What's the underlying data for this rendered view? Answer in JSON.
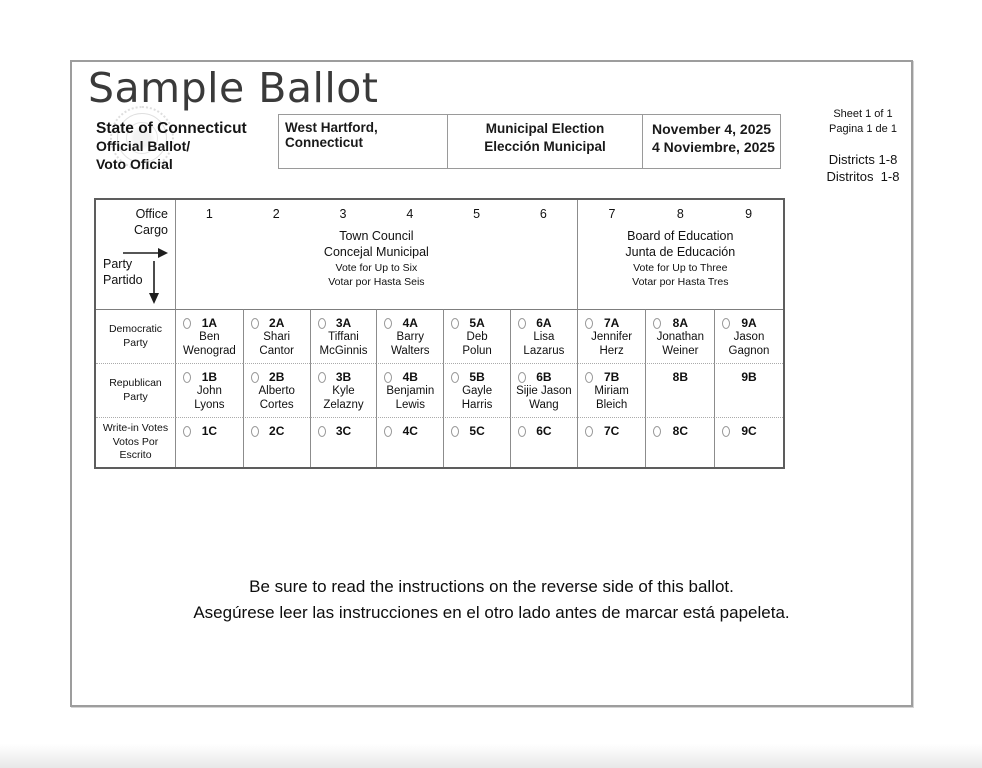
{
  "title": "Sample Ballot",
  "state_block": {
    "line1": "State of Connecticut",
    "line2": "Official Ballot/",
    "line3": "Voto Oficial"
  },
  "header_boxes": {
    "location": "West Hartford, Connecticut",
    "election_en": "Municipal Election",
    "election_es": "Elección Municipal",
    "date_en": "November 4, 2025",
    "date_es": "4 Noviembre, 2025"
  },
  "sheet_info": {
    "sheet_en": "Sheet 1 of 1",
    "sheet_es": "Pagina 1 de 1",
    "districts_en": "Districts 1-8",
    "districts_es": "Distritos  1-8"
  },
  "grid": {
    "office_en": "Office",
    "office_es": "Cargo",
    "party_en": "Party",
    "party_es": "Partido",
    "sections": [
      {
        "id": "town-council",
        "column_numbers": [
          "1",
          "2",
          "3",
          "4",
          "5",
          "6"
        ],
        "title_en": "Town Council",
        "title_es": "Concejal Municipal",
        "vote_en": "Vote for Up to Six",
        "vote_es": "Votar por Hasta Seis"
      },
      {
        "id": "board-of-education",
        "column_numbers": [
          "7",
          "8",
          "9"
        ],
        "title_en": "Board of Education",
        "title_es": "Junta de Educación",
        "vote_en": "Vote for Up to Three",
        "vote_es": "Votar por Hasta Tres"
      }
    ],
    "rows": [
      {
        "label": [
          "Democratic",
          "Party"
        ],
        "cells": [
          {
            "code": "1A",
            "bubble": true,
            "name": [
              "Ben",
              "Wenograd"
            ]
          },
          {
            "code": "2A",
            "bubble": true,
            "name": [
              "Shari",
              "Cantor"
            ]
          },
          {
            "code": "3A",
            "bubble": true,
            "name": [
              "Tiffani",
              "McGinnis"
            ]
          },
          {
            "code": "4A",
            "bubble": true,
            "name": [
              "Barry",
              "Walters"
            ]
          },
          {
            "code": "5A",
            "bubble": true,
            "name": [
              "Deb",
              "Polun"
            ]
          },
          {
            "code": "6A",
            "bubble": true,
            "name": [
              "Lisa",
              "Lazarus"
            ]
          },
          {
            "code": "7A",
            "bubble": true,
            "name": [
              "Jennifer",
              "Herz"
            ]
          },
          {
            "code": "8A",
            "bubble": true,
            "name": [
              "Jonathan",
              "Weiner"
            ]
          },
          {
            "code": "9A",
            "bubble": true,
            "name": [
              "Jason",
              "Gagnon"
            ]
          }
        ]
      },
      {
        "label": [
          "Republican",
          "Party"
        ],
        "cells": [
          {
            "code": "1B",
            "bubble": true,
            "name": [
              "John",
              "Lyons"
            ]
          },
          {
            "code": "2B",
            "bubble": true,
            "name": [
              "Alberto",
              "Cortes"
            ]
          },
          {
            "code": "3B",
            "bubble": true,
            "name": [
              "Kyle",
              "Zelazny"
            ]
          },
          {
            "code": "4B",
            "bubble": true,
            "name": [
              "Benjamin",
              "Lewis"
            ]
          },
          {
            "code": "5B",
            "bubble": true,
            "name": [
              "Gayle",
              "Harris"
            ]
          },
          {
            "code": "6B",
            "bubble": true,
            "name": [
              "Sijie Jason",
              "Wang"
            ]
          },
          {
            "code": "7B",
            "bubble": true,
            "name": [
              "Miriam",
              "Bleich"
            ]
          },
          {
            "code": "8B",
            "bubble": false,
            "name": []
          },
          {
            "code": "9B",
            "bubble": false,
            "name": []
          }
        ]
      },
      {
        "label": [
          "Write-in Votes",
          "Votos Por Escrito"
        ],
        "cells": [
          {
            "code": "1C",
            "bubble": true,
            "name": []
          },
          {
            "code": "2C",
            "bubble": true,
            "name": []
          },
          {
            "code": "3C",
            "bubble": true,
            "name": []
          },
          {
            "code": "4C",
            "bubble": true,
            "name": []
          },
          {
            "code": "5C",
            "bubble": true,
            "name": []
          },
          {
            "code": "6C",
            "bubble": true,
            "name": []
          },
          {
            "code": "7C",
            "bubble": true,
            "name": []
          },
          {
            "code": "8C",
            "bubble": true,
            "name": []
          },
          {
            "code": "9C",
            "bubble": true,
            "name": []
          }
        ]
      }
    ]
  },
  "footer": {
    "line_en": "Be sure to read the instructions on the reverse side of this ballot.",
    "line_es": "Asegúrese leer las instrucciones en el otro lado antes de marcar está papeleta."
  }
}
